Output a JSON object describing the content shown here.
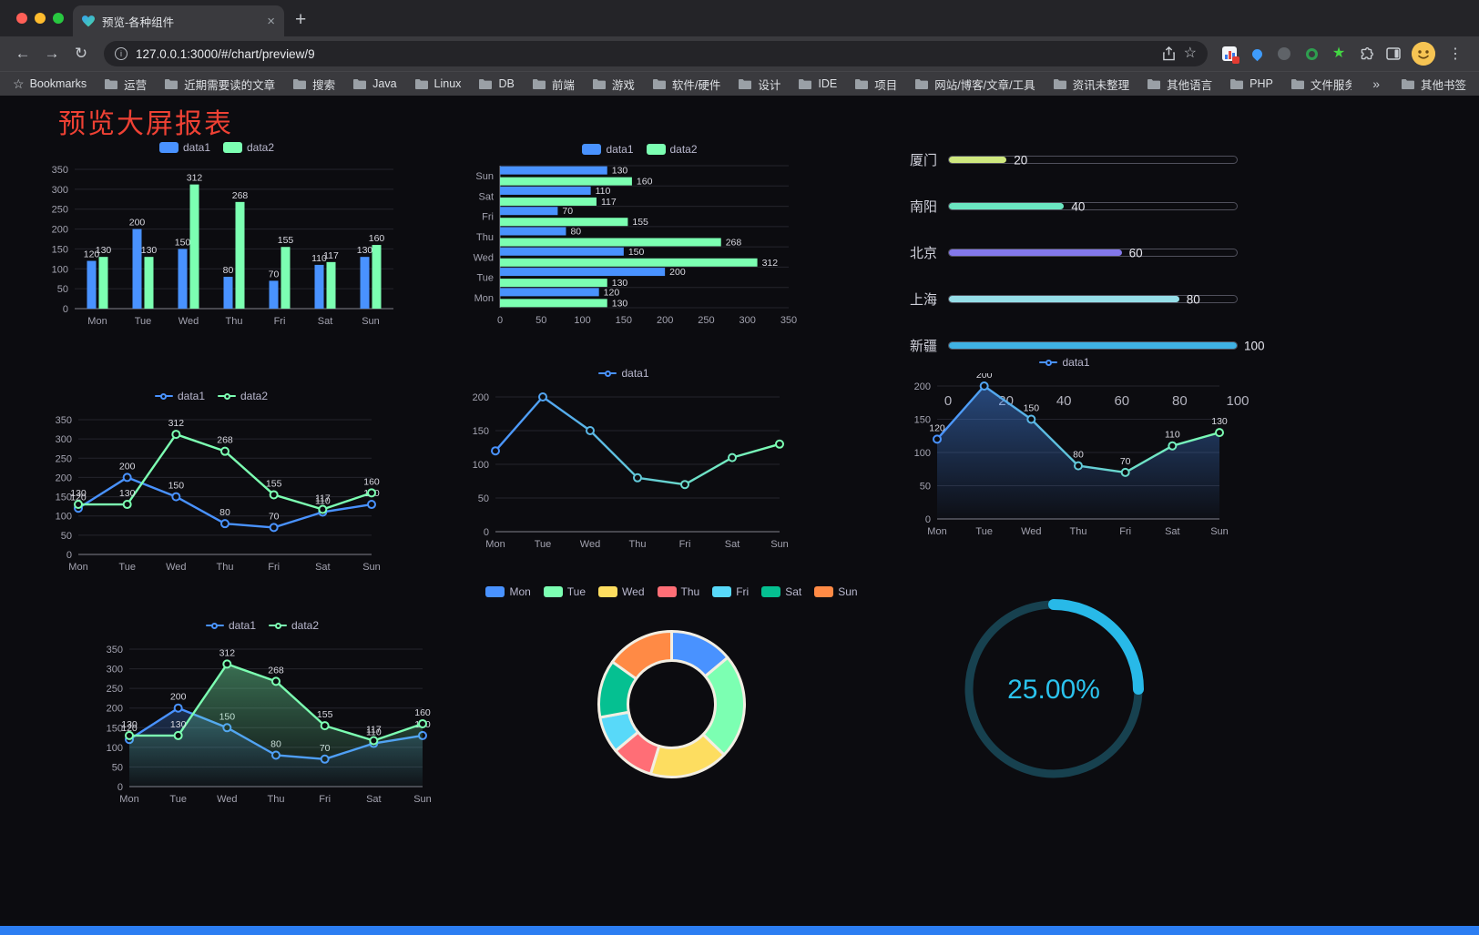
{
  "browser": {
    "tab_title": "预览-各种组件",
    "tab_close": "×",
    "new_tab": "+",
    "url": "127.0.0.1:3000/#/chart/preview/9",
    "icons": {
      "back": "←",
      "forward": "→",
      "reload": "↻",
      "menu_dots": "⋮",
      "bookmarks_star": "☆",
      "green_star": "★",
      "overflow_chevron": "»"
    },
    "bookmarks_label": "Bookmarks",
    "bookmarks": [
      "运营",
      "近期需要读的文章",
      "搜索",
      "Java",
      "Linux",
      "DB",
      "前端",
      "游戏",
      "软件/硬件",
      "设计",
      "IDE",
      "项目",
      "网站/博客/文章/工具",
      "资讯未整理",
      "其他语言",
      "PHP",
      "文件服务器"
    ],
    "other_bookmarks": "其他书签"
  },
  "page": {
    "title": "预览大屏报表"
  },
  "chart_data": [
    {
      "type": "bar",
      "categories": [
        "Mon",
        "Tue",
        "Wed",
        "Thu",
        "Fri",
        "Sat",
        "Sun"
      ],
      "series": [
        {
          "name": "data1",
          "color": "#4992ff",
          "values": [
            120,
            200,
            150,
            80,
            70,
            110,
            130
          ]
        },
        {
          "name": "data2",
          "color": "#7cffb2",
          "values": [
            130,
            130,
            312,
            268,
            155,
            117,
            160
          ]
        }
      ],
      "ylim": [
        0,
        350
      ],
      "ystep": 50,
      "value_labels": true
    },
    {
      "type": "hbar",
      "categories": [
        "Mon",
        "Tue",
        "Wed",
        "Thu",
        "Fri",
        "Sat",
        "Sun"
      ],
      "series": [
        {
          "name": "data1",
          "color": "#4992ff",
          "values": [
            120,
            200,
            150,
            80,
            70,
            110,
            130
          ]
        },
        {
          "name": "data2",
          "color": "#7cffb2",
          "values": [
            130,
            130,
            312,
            268,
            155,
            117,
            160
          ]
        }
      ],
      "xlim": [
        0,
        350
      ],
      "xstep": 50,
      "value_labels": true
    },
    {
      "type": "progress_bars",
      "max": 100,
      "xticks": [
        0,
        20,
        40,
        60,
        80,
        100
      ],
      "items": [
        {
          "label": "厦门",
          "value": 20,
          "color": "#cfe87f"
        },
        {
          "label": "南阳",
          "value": 40,
          "color": "#6be6c1"
        },
        {
          "label": "北京",
          "value": 60,
          "color": "#8378ea"
        },
        {
          "label": "上海",
          "value": 80,
          "color": "#96dee8"
        },
        {
          "label": "新疆",
          "value": 100,
          "color": "#3fb1e3"
        }
      ]
    },
    {
      "type": "line",
      "categories": [
        "Mon",
        "Tue",
        "Wed",
        "Thu",
        "Fri",
        "Sat",
        "Sun"
      ],
      "series": [
        {
          "name": "data1",
          "color": "#4992ff",
          "values": [
            120,
            200,
            150,
            80,
            70,
            110,
            130
          ]
        },
        {
          "name": "data2",
          "color": "#7cffb2",
          "values": [
            130,
            130,
            312,
            268,
            155,
            117,
            160
          ]
        }
      ],
      "ylim": [
        0,
        350
      ],
      "ystep": 50,
      "value_labels": true
    },
    {
      "type": "line",
      "categories": [
        "Mon",
        "Tue",
        "Wed",
        "Thu",
        "Fri",
        "Sat",
        "Sun"
      ],
      "series": [
        {
          "name": "data1",
          "color": "#4992ff",
          "gradient": [
            "#4992ff",
            "#7cffb2"
          ],
          "values": [
            120,
            200,
            150,
            80,
            70,
            110,
            130
          ]
        }
      ],
      "ylim": [
        0,
        200
      ],
      "ystep": 50,
      "value_labels": false
    },
    {
      "type": "line",
      "categories": [
        "Mon",
        "Tue",
        "Wed",
        "Thu",
        "Fri",
        "Sat",
        "Sun"
      ],
      "series": [
        {
          "name": "data1",
          "color": "#4992ff",
          "gradient": [
            "#4992ff",
            "#7cffb2"
          ],
          "area": true,
          "values": [
            120,
            200,
            150,
            80,
            70,
            110,
            130
          ]
        }
      ],
      "ylim": [
        0,
        200
      ],
      "ystep": 50,
      "value_labels": true
    },
    {
      "type": "line",
      "categories": [
        "Mon",
        "Tue",
        "Wed",
        "Thu",
        "Fri",
        "Sat",
        "Sun"
      ],
      "series": [
        {
          "name": "data1",
          "color": "#4992ff",
          "area": true,
          "values": [
            120,
            200,
            150,
            80,
            70,
            110,
            130
          ]
        },
        {
          "name": "data2",
          "color": "#7cffb2",
          "area": true,
          "values": [
            130,
            130,
            312,
            268,
            155,
            117,
            160
          ]
        }
      ],
      "ylim": [
        0,
        350
      ],
      "ystep": 50,
      "value_labels": true
    },
    {
      "type": "donut",
      "items": [
        {
          "label": "Mon",
          "value": 120,
          "color": "#4992ff"
        },
        {
          "label": "Tue",
          "value": 200,
          "color": "#7cffb2"
        },
        {
          "label": "Wed",
          "value": 150,
          "color": "#fddd60"
        },
        {
          "label": "Thu",
          "value": 80,
          "color": "#ff6e76"
        },
        {
          "label": "Fri",
          "value": 70,
          "color": "#58d9f9"
        },
        {
          "label": "Sat",
          "value": 110,
          "color": "#05c091"
        },
        {
          "label": "Sun",
          "value": 130,
          "color": "#ff8a45"
        }
      ]
    },
    {
      "type": "ring",
      "value": 25,
      "label": "25.00%",
      "color": "#28b9e8",
      "track_color": "#17414f"
    }
  ]
}
